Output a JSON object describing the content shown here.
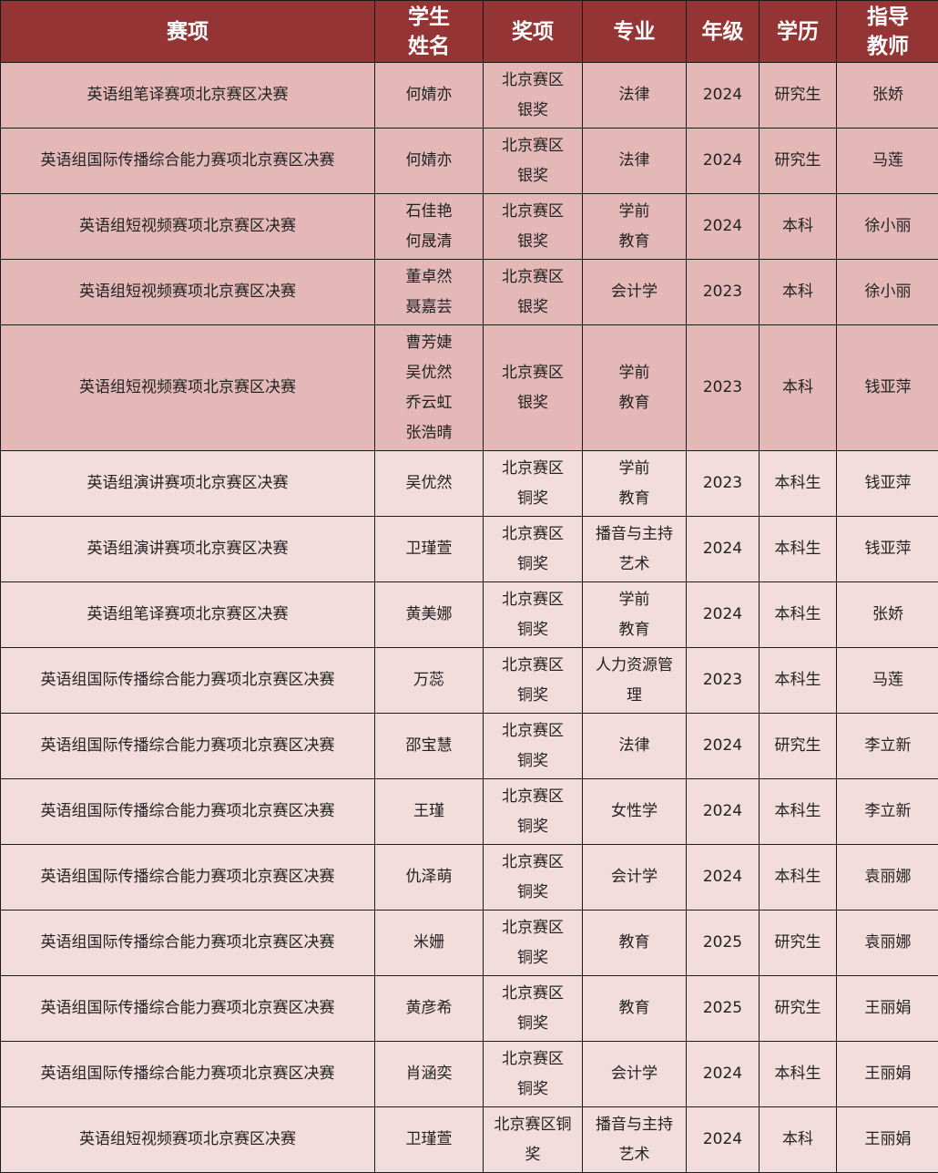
{
  "colors": {
    "header": "#943434",
    "silver_row": "#e5b8b8",
    "bronze_row": "#f2dcdc"
  },
  "headers": [
    "赛项",
    "学生\n姓名",
    "奖项",
    "专业",
    "年级",
    "学历",
    "指导\n教师"
  ],
  "rows": [
    {
      "tier": "silver",
      "event": "英语组笔译赛项北京赛区决赛",
      "students": "何婧亦",
      "award": "北京赛区\n银奖",
      "major": "法律",
      "grade": "2024",
      "degree": "研究生",
      "teacher": "张娇"
    },
    {
      "tier": "silver",
      "event": "英语组国际传播综合能力赛项北京赛区决赛",
      "students": "何婧亦",
      "award": "北京赛区\n银奖",
      "major": "法律",
      "grade": "2024",
      "degree": "研究生",
      "teacher": "马莲"
    },
    {
      "tier": "silver",
      "event": "英语组短视频赛项北京赛区决赛",
      "students": "石佳艳\n何晟清",
      "award": "北京赛区\n银奖",
      "major": "学前\n教育",
      "grade": "2024",
      "degree": "本科",
      "teacher": "徐小丽"
    },
    {
      "tier": "silver",
      "event": "英语组短视频赛项北京赛区决赛",
      "students": "董卓然\n聂嘉芸",
      "award": "北京赛区\n银奖",
      "major": "会计学",
      "grade": "2023",
      "degree": "本科",
      "teacher": "徐小丽"
    },
    {
      "tier": "silver",
      "event": "英语组短视频赛项北京赛区决赛",
      "students": "曹芳婕\n吴优然\n乔云虹\n张浩晴",
      "award": "北京赛区\n银奖",
      "major": "学前\n教育",
      "grade": "2023",
      "degree": "本科",
      "teacher": "钱亚萍"
    },
    {
      "tier": "bronze",
      "event": "英语组演讲赛项北京赛区决赛",
      "students": "吴优然",
      "award": "北京赛区\n铜奖",
      "major": "学前\n教育",
      "grade": "2023",
      "degree": "本科生",
      "teacher": "钱亚萍"
    },
    {
      "tier": "bronze",
      "event": "英语组演讲赛项北京赛区决赛",
      "students": "卫瑾萱",
      "award": "北京赛区\n铜奖",
      "major": "播音与主持\n艺术",
      "grade": "2024",
      "degree": "本科生",
      "teacher": "钱亚萍"
    },
    {
      "tier": "bronze",
      "event": "英语组笔译赛项北京赛区决赛",
      "students": "黄美娜",
      "award": "北京赛区\n铜奖",
      "major": "学前\n教育",
      "grade": "2024",
      "degree": "本科生",
      "teacher": "张娇"
    },
    {
      "tier": "bronze",
      "event": "英语组国际传播综合能力赛项北京赛区决赛",
      "students": "万蕊",
      "award": "北京赛区\n铜奖",
      "major": "人力资源管\n理",
      "grade": "2023",
      "degree": "本科生",
      "teacher": "马莲"
    },
    {
      "tier": "bronze",
      "event": "英语组国际传播综合能力赛项北京赛区决赛",
      "students": "邵宝慧",
      "award": "北京赛区\n铜奖",
      "major": "法律",
      "grade": "2024",
      "degree": "研究生",
      "teacher": "李立新"
    },
    {
      "tier": "bronze",
      "event": "英语组国际传播综合能力赛项北京赛区决赛",
      "students": "王瑾",
      "award": "北京赛区\n铜奖",
      "major": "女性学",
      "grade": "2024",
      "degree": "本科生",
      "teacher": "李立新"
    },
    {
      "tier": "bronze",
      "event": "英语组国际传播综合能力赛项北京赛区决赛",
      "students": "仇泽萌",
      "award": "北京赛区\n铜奖",
      "major": "会计学",
      "grade": "2024",
      "degree": "本科生",
      "teacher": "袁丽娜"
    },
    {
      "tier": "bronze",
      "event": "英语组国际传播综合能力赛项北京赛区决赛",
      "students": "米姗",
      "award": "北京赛区\n铜奖",
      "major": "教育",
      "grade": "2025",
      "degree": "研究生",
      "teacher": "袁丽娜"
    },
    {
      "tier": "bronze",
      "event": "英语组国际传播综合能力赛项北京赛区决赛",
      "students": "黄彦希",
      "award": "北京赛区\n铜奖",
      "major": "教育",
      "grade": "2025",
      "degree": "研究生",
      "teacher": "王丽娟"
    },
    {
      "tier": "bronze",
      "event": "英语组国际传播综合能力赛项北京赛区决赛",
      "students": "肖涵奕",
      "award": "北京赛区\n铜奖",
      "major": "会计学",
      "grade": "2024",
      "degree": "本科生",
      "teacher": "王丽娟"
    },
    {
      "tier": "bronze",
      "event": "英语组短视频赛项北京赛区决赛",
      "students": "卫瑾萱",
      "award": "北京赛区铜\n奖",
      "major": "播音与主持\n艺术",
      "grade": "2024",
      "degree": "本科",
      "teacher": "王丽娟"
    }
  ]
}
